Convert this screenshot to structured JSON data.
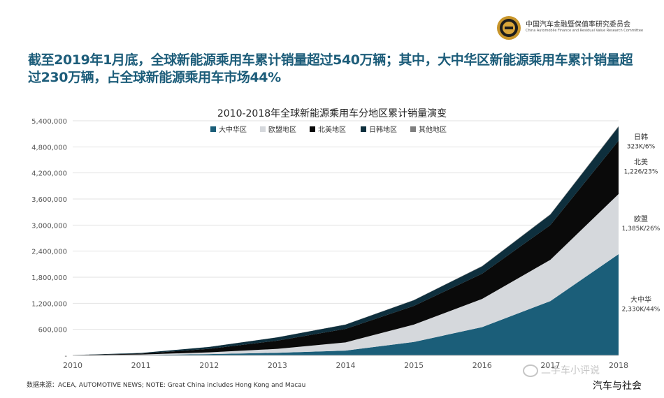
{
  "header": {
    "org_name_cn": "中国汽车金融暨保值率研究委员会",
    "org_name_en": "China Automobile Finance and Residual Value Research Committee",
    "headline_parts": [
      {
        "text": "截至",
        "bold": false
      },
      {
        "text": "2019",
        "bold": true
      },
      {
        "text": "年",
        "bold": false
      },
      {
        "text": "1",
        "bold": true
      },
      {
        "text": "月底，全球新能源乘用车累计销量超过",
        "bold": false
      },
      {
        "text": "540",
        "bold": true
      },
      {
        "text": "万辆；其中，大中华区新能源乘用车累计销量超过",
        "bold": false
      },
      {
        "text": "230",
        "bold": true
      },
      {
        "text": "万辆，占全球新能源乘用车市场",
        "bold": false
      },
      {
        "text": "44%",
        "bold": true
      }
    ]
  },
  "chart_data": {
    "type": "area",
    "stacked": true,
    "title": "2010-2018年全球新能源乘用车分地区累计销量演变",
    "x": [
      2010,
      2011,
      2012,
      2013,
      2014,
      2015,
      2016,
      2017,
      2018
    ],
    "x_tick_labels": [
      "2010",
      "2011",
      "2012",
      "2013",
      "2014",
      "2015",
      "2016",
      "2017",
      "2018"
    ],
    "ylim": [
      0,
      5400000
    ],
    "y_ticks": [
      0,
      600000,
      1200000,
      1800000,
      2400000,
      3000000,
      3600000,
      4200000,
      4800000,
      5400000
    ],
    "y_tick_labels": [
      "-",
      "600,000",
      "1,200,000",
      "1,800,000",
      "2,400,000",
      "3,000,000",
      "3,600,000",
      "4,200,000",
      "4,800,000",
      "5,400,000"
    ],
    "grid": true,
    "legend_position": "top",
    "series": [
      {
        "name": "大中华区",
        "color": "#1b5e79",
        "values": [
          2000,
          8000,
          30000,
          60000,
          110000,
          310000,
          650000,
          1250000,
          2330000
        ]
      },
      {
        "name": "欧盟地区",
        "color": "#d5d8dc",
        "values": [
          2000,
          12000,
          40000,
          90000,
          190000,
          400000,
          650000,
          950000,
          1385000
        ]
      },
      {
        "name": "北美地区",
        "color": "#0a0a0a",
        "values": [
          3000,
          22000,
          80000,
          190000,
          310000,
          430000,
          580000,
          800000,
          1226000
        ]
      },
      {
        "name": "日韩地区",
        "color": "#0e2f3d",
        "values": [
          2000,
          15000,
          45000,
          75000,
          100000,
          130000,
          170000,
          240000,
          323000
        ]
      },
      {
        "name": "其他地区",
        "color": "#7f7f7f",
        "values": [
          0,
          0,
          1000,
          2000,
          4000,
          6000,
          8000,
          10000,
          15000
        ]
      }
    ],
    "annotations": [
      {
        "series": "日韩地区",
        "name": "日韩",
        "value": "323K/6%"
      },
      {
        "series": "北美地区",
        "name": "北美",
        "value": "1,226/23%"
      },
      {
        "series": "欧盟地区",
        "name": "欧盟",
        "value": "1,385K/26%"
      },
      {
        "series": "大中华区",
        "name": "大中华",
        "value": "2,330K/44%"
      }
    ]
  },
  "footer": {
    "source": "数据来源：ACEA, AUTOMOTIVE NEWS; NOTE: Great China includes Hong Kong and Macau",
    "watermark": "二手车小评说",
    "watermark2": "汽车与社会"
  }
}
